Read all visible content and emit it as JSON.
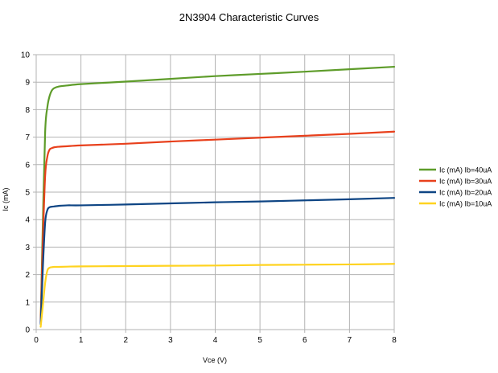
{
  "chart_data": {
    "type": "line",
    "title": "2N3904 Characteristic Curves",
    "xlabel": "Vce (V)",
    "ylabel": "Ic (mA)",
    "xlim": [
      0,
      8
    ],
    "ylim": [
      0,
      10
    ],
    "x_ticks": [
      "0",
      "1",
      "2",
      "3",
      "4",
      "5",
      "6",
      "7",
      "8"
    ],
    "y_ticks": [
      "0",
      "1",
      "2",
      "3",
      "4",
      "5",
      "6",
      "7",
      "8",
      "9",
      "10"
    ],
    "grid": true,
    "legend_position": "right",
    "series": [
      {
        "name": "Ic (mA) Ib=40uA",
        "color": "#5e9c2a",
        "x": [
          0.1,
          0.15,
          0.2,
          0.25,
          0.3,
          0.35,
          0.4,
          0.5,
          0.7,
          1.0,
          2.0,
          3.0,
          4.0,
          5.0,
          6.0,
          7.0,
          8.0
        ],
        "y": [
          0.3,
          4.0,
          7.2,
          8.1,
          8.5,
          8.7,
          8.78,
          8.84,
          8.88,
          8.93,
          9.02,
          9.12,
          9.22,
          9.3,
          9.38,
          9.47,
          9.56
        ]
      },
      {
        "name": "Ic (mA) Ib=30uA",
        "color": "#e8401c",
        "x": [
          0.1,
          0.15,
          0.2,
          0.25,
          0.3,
          0.35,
          0.4,
          0.5,
          0.7,
          1.0,
          2.0,
          3.0,
          4.0,
          5.0,
          6.0,
          7.0,
          8.0
        ],
        "y": [
          0.25,
          3.3,
          5.6,
          6.3,
          6.55,
          6.6,
          6.63,
          6.65,
          6.67,
          6.7,
          6.76,
          6.84,
          6.91,
          6.98,
          7.05,
          7.12,
          7.2
        ]
      },
      {
        "name": "Ic (mA) Ib=20uA",
        "color": "#0e4584",
        "x": [
          0.1,
          0.15,
          0.2,
          0.25,
          0.3,
          0.35,
          0.4,
          0.5,
          0.7,
          1.0,
          2.0,
          3.0,
          4.0,
          5.0,
          6.0,
          7.0,
          8.0
        ],
        "y": [
          0.2,
          2.3,
          3.9,
          4.35,
          4.45,
          4.47,
          4.48,
          4.5,
          4.52,
          4.52,
          4.55,
          4.59,
          4.63,
          4.66,
          4.7,
          4.74,
          4.79
        ]
      },
      {
        "name": "Ic (mA) Ib=10uA",
        "color": "#ffd320",
        "x": [
          0.1,
          0.15,
          0.2,
          0.25,
          0.3,
          0.35,
          0.4,
          0.5,
          0.7,
          1.0,
          2.0,
          3.0,
          4.0,
          5.0,
          6.0,
          7.0,
          8.0
        ],
        "y": [
          0.1,
          0.9,
          1.7,
          2.15,
          2.25,
          2.27,
          2.28,
          2.28,
          2.29,
          2.3,
          2.31,
          2.32,
          2.33,
          2.35,
          2.36,
          2.37,
          2.39
        ]
      }
    ]
  }
}
